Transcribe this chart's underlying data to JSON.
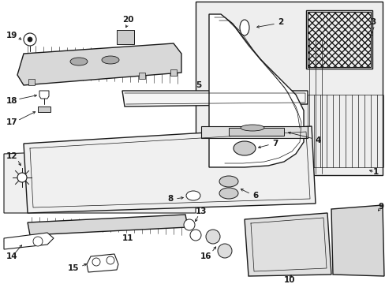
{
  "bg_color": "#ffffff",
  "line_color": "#1a1a1a",
  "label_color": "#000000",
  "gray_fill": "#e8e8e8",
  "light_gray": "#f0f0f0",
  "mid_gray": "#d0d0d0"
}
